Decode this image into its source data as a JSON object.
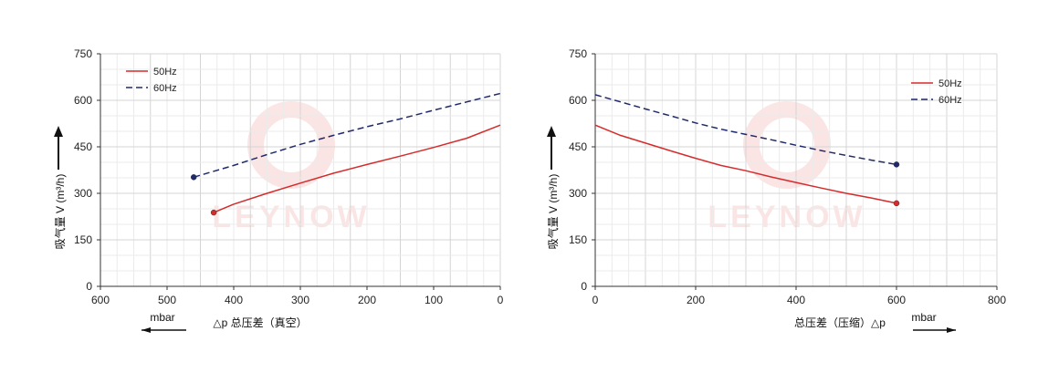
{
  "chart_data": [
    {
      "type": "line",
      "ylabel": "吸气量 V (m³/h)",
      "xlabel": "△p  总压差（真空）",
      "unit": "mbar",
      "xlim": [
        600,
        0
      ],
      "ylim": [
        0,
        750
      ],
      "xticks": [
        600,
        500,
        400,
        300,
        200,
        100,
        0
      ],
      "yticks": [
        0,
        150,
        300,
        450,
        600,
        750
      ],
      "grid": true,
      "legend": "top-left",
      "watermark": "LEYNOW",
      "series": [
        {
          "name": "50Hz",
          "style": "solid",
          "color": "#d62b2b",
          "x": [
            430,
            400,
            350,
            300,
            250,
            200,
            150,
            100,
            50,
            0
          ],
          "y": [
            238,
            265,
            300,
            333,
            365,
            393,
            420,
            448,
            478,
            520
          ]
        },
        {
          "name": "60Hz",
          "style": "dashed",
          "color": "#1f2a6b",
          "x": [
            460,
            400,
            350,
            300,
            250,
            200,
            150,
            100,
            50,
            0
          ],
          "y": [
            352,
            390,
            425,
            458,
            487,
            515,
            540,
            568,
            595,
            622
          ]
        }
      ]
    },
    {
      "type": "line",
      "ylabel": "吸气量 V (m³/h)",
      "xlabel": "总压差（压缩）△p",
      "unit": "mbar",
      "xlim": [
        0,
        800
      ],
      "ylim": [
        0,
        750
      ],
      "xticks": [
        0,
        200,
        400,
        600,
        800
      ],
      "yticks": [
        0,
        150,
        300,
        450,
        600,
        750
      ],
      "grid": true,
      "legend": "top-right",
      "watermark": "LEYNOW",
      "series": [
        {
          "name": "50Hz",
          "style": "solid",
          "color": "#d62b2b",
          "x": [
            0,
            50,
            100,
            150,
            200,
            250,
            300,
            350,
            400,
            450,
            500,
            550,
            600
          ],
          "y": [
            520,
            487,
            462,
            437,
            413,
            390,
            373,
            353,
            335,
            317,
            300,
            285,
            268
          ]
        },
        {
          "name": "60Hz",
          "style": "dashed",
          "color": "#1f2a6b",
          "x": [
            0,
            50,
            100,
            150,
            200,
            250,
            300,
            350,
            400,
            450,
            500,
            550,
            600
          ],
          "y": [
            618,
            595,
            572,
            550,
            527,
            507,
            490,
            473,
            455,
            438,
            422,
            407,
            393
          ]
        }
      ]
    }
  ]
}
